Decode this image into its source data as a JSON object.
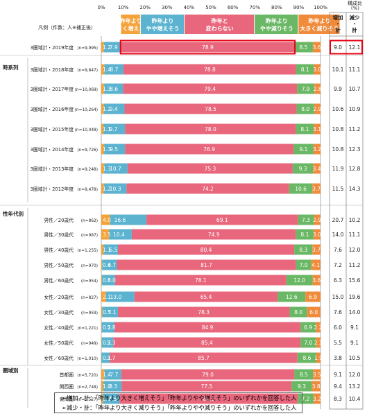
{
  "chart_data": {
    "type": "bar",
    "stacked": true,
    "orientation": "horizontal",
    "axis": {
      "ticks": [
        "0%",
        "10%",
        "20%",
        "30%",
        "40%",
        "50%",
        "60%",
        "70%",
        "80%",
        "90%",
        "100%"
      ],
      "unit_label": "構成比"
    },
    "legend_caption": "凡例（件数：人※補正後）",
    "series": [
      {
        "name": "昨年より大きく増えそう",
        "lines": [
          "昨年より",
          "大きく増えそう"
        ],
        "color": "#f4a23a"
      },
      {
        "name": "昨年よりやや増えそう",
        "lines": [
          "昨年より",
          "やや増えそう"
        ],
        "color": "#5bb3d0"
      },
      {
        "name": "昨年と変わらない",
        "lines": [
          "昨年と",
          "変わらない"
        ],
        "color": "#e8677d"
      },
      {
        "name": "昨年よりやや減りそう",
        "lines": [
          "昨年より",
          "やや減りそう"
        ],
        "color": "#6ab866"
      },
      {
        "name": "昨年より大きく減りそう",
        "lines": [
          "昨年より",
          "大きく減りそう"
        ],
        "color": "#f08b3c"
      }
    ],
    "summary_headers": {
      "percent": "(%)",
      "increase": [
        "増加",
        "・",
        "計"
      ],
      "decrease": [
        "減少",
        "・",
        "計"
      ]
    },
    "groups": [
      {
        "label": "",
        "rows": [
          {
            "label": "3圏域計・2019年度",
            "n": "(n=9,995)",
            "values": [
              1.2,
              7.9,
              78.9,
              8.5,
              3.6
            ],
            "increase": "9.0",
            "decrease": "12.1",
            "highlight": true
          }
        ]
      },
      {
        "label": "時系列",
        "rows": [
          {
            "label": "3圏域計・2018年度",
            "n": "(n=9,847)",
            "values": [
              1.4,
              8.7,
              78.8,
              8.1,
              3.0
            ],
            "increase": "10.1",
            "decrease": "11.1"
          },
          {
            "label": "3圏域計・2017年度",
            "n": "(n=10,069)",
            "values": [
              1.3,
              8.6,
              79.4,
              7.9,
              2.8
            ],
            "increase": "9.9",
            "decrease": "10.7"
          },
          {
            "label": "3圏域計・2016年度",
            "n": "(n=10,264)",
            "values": [
              1.2,
              9.4,
              78.5,
              8.0,
              2.9
            ],
            "increase": "10.6",
            "decrease": "10.9"
          },
          {
            "label": "3圏域計・2015年度",
            "n": "(n=10,048)",
            "values": [
              1.1,
              9.7,
              78.0,
              8.1,
              3.1
            ],
            "increase": "10.8",
            "decrease": "11.2"
          },
          {
            "label": "3圏域計・2014年度",
            "n": "(n=9,726)",
            "values": [
              1.3,
              9.5,
              76.9,
              9.1,
              3.2
            ],
            "increase": "10.8",
            "decrease": "12.3"
          },
          {
            "label": "3圏域計・2013年度",
            "n": "(n=9,248)",
            "values": [
              1.3,
              10.7,
              75.3,
              9.3,
              3.4
            ],
            "increase": "11.9",
            "decrease": "12.8"
          },
          {
            "label": "3圏域計・2012年度",
            "n": "(n=9,478)",
            "values": [
              1.2,
              10.3,
              74.2,
              10.6,
              3.7
            ],
            "increase": "11.5",
            "decrease": "14.3"
          }
        ]
      },
      {
        "label": "性年代別",
        "rows": [
          {
            "label": "男性／20歳代",
            "n": "(n=862)",
            "values": [
              4.0,
              16.6,
              69.1,
              7.3,
              2.9
            ],
            "increase": "20.7",
            "decrease": "10.2"
          },
          {
            "label": "男性／30歳代",
            "n": "(n=987)",
            "values": [
              3.5,
              10.4,
              74.9,
              8.1,
              3.0
            ],
            "increase": "14.0",
            "decrease": "11.1"
          },
          {
            "label": "男性／40歳代",
            "n": "(n=1,255)",
            "values": [
              1.1,
              6.5,
              80.4,
              8.3,
              3.7
            ],
            "increase": "7.6",
            "decrease": "12.0"
          },
          {
            "label": "男性／50歳代",
            "n": "(n=970)",
            "values": [
              0.4,
              6.7,
              81.7,
              7.0,
              4.1
            ],
            "increase": "7.2",
            "decrease": "11.2"
          },
          {
            "label": "男性／60歳代",
            "n": "(n=954)",
            "values": [
              0.3,
              6.0,
              78.1,
              12.0,
              3.6
            ],
            "increase": "6.3",
            "decrease": "15.6"
          },
          {
            "label": "女性／20歳代",
            "n": "(n=827)",
            "values": [
              2.1,
              13.0,
              65.4,
              12.6,
              6.9
            ],
            "increase": "15.0",
            "decrease": "19.6"
          },
          {
            "label": "女性／30歳代",
            "n": "(n=959)",
            "values": [
              0.5,
              7.1,
              78.3,
              8.0,
              6.0
            ],
            "increase": "7.6",
            "decrease": "14.0"
          },
          {
            "label": "女性／40歳代",
            "n": "(n=1,221)",
            "values": [
              0.2,
              5.8,
              84.9,
              6.9,
              2.2
            ],
            "increase": "6.0",
            "decrease": "9.1"
          },
          {
            "label": "女性／50歳代",
            "n": "(n=949)",
            "values": [
              0.2,
              5.3,
              85.4,
              7.0,
              2.1
            ],
            "increase": "5.5",
            "decrease": "9.1"
          },
          {
            "label": "女性／60歳代",
            "n": "(n=1,010)",
            "values": [
              0.1,
              3.7,
              85.7,
              8.6,
              1.9
            ],
            "increase": "3.8",
            "decrease": "10.5"
          }
        ]
      },
      {
        "label": "圏域別",
        "rows": [
          {
            "label": "首都圏",
            "n": "(n=5,720)",
            "values": [
              1.4,
              7.7,
              79.0,
              8.5,
              3.5
            ],
            "increase": "9.1",
            "decrease": "12.0"
          },
          {
            "label": "関西圏",
            "n": "(n=2,748)",
            "values": [
              1.0,
              8.3,
              77.5,
              9.3,
              3.8
            ],
            "increase": "9.4",
            "decrease": "13.2"
          },
          {
            "label": "東海圏",
            "n": "(n=1,527)",
            "values": [
              0.7,
              7.6,
              81.3,
              7.2,
              3.2
            ],
            "increase": "8.3",
            "decrease": "10.4"
          }
        ]
      }
    ]
  },
  "notes": [
    "➢増加・計：「昨年より大きく増えそう」「昨年よりやや増えそう」のいずれかを回答した人",
    "➢減少・計：「昨年より大きく減りそう」「昨年よりやや減りそう」のいずれかを回答した人"
  ]
}
